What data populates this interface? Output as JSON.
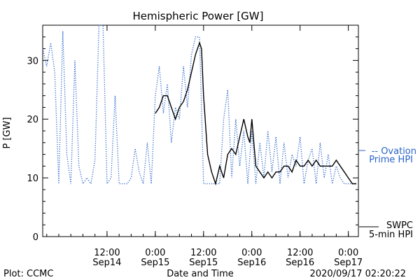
{
  "chart_data": {
    "type": "line",
    "title": "Hemispheric Power [GW]",
    "ylabel": "P [GW]",
    "xlabel": "Date and Time",
    "ylim": [
      0,
      36
    ],
    "yticks": [
      0,
      10,
      20,
      30
    ],
    "xlim": [
      "2020-09-13T20:00",
      "2020-09-17T02:30"
    ],
    "xticks": [
      {
        "time": "2020-09-14T12:00",
        "top": "12:00",
        "bottom": "Sep14"
      },
      {
        "time": "2020-09-15T00:00",
        "top": "0:00",
        "bottom": "Sep15"
      },
      {
        "time": "2020-09-15T12:00",
        "top": "12:00",
        "bottom": "Sep15"
      },
      {
        "time": "2020-09-16T00:00",
        "top": "0:00",
        "bottom": "Sep16"
      },
      {
        "time": "2020-09-16T12:00",
        "top": "12:00",
        "bottom": "Sep16"
      },
      {
        "time": "2020-09-17T00:00",
        "top": "0:00",
        "bottom": "Sep17"
      }
    ],
    "series": [
      {
        "name": "Ovation Prime HPI",
        "legend_lines": [
          "-- Ovation",
          "Prime HPI"
        ],
        "color": "#2a64c8",
        "style": "dotted",
        "points": [
          [
            "2020-09-13T20:00",
            32
          ],
          [
            "2020-09-13T21:00",
            29
          ],
          [
            "2020-09-13T22:00",
            33
          ],
          [
            "2020-09-13T23:00",
            28
          ],
          [
            "2020-09-14T00:00",
            9
          ],
          [
            "2020-09-14T01:00",
            35
          ],
          [
            "2020-09-14T02:00",
            14
          ],
          [
            "2020-09-14T03:00",
            9
          ],
          [
            "2020-09-14T04:00",
            30
          ],
          [
            "2020-09-14T05:00",
            12
          ],
          [
            "2020-09-14T06:00",
            9
          ],
          [
            "2020-09-14T07:00",
            10
          ],
          [
            "2020-09-14T08:00",
            9
          ],
          [
            "2020-09-14T09:00",
            13
          ],
          [
            "2020-09-14T10:00",
            36
          ],
          [
            "2020-09-14T11:00",
            36
          ],
          [
            "2020-09-14T12:00",
            9
          ],
          [
            "2020-09-14T13:00",
            10
          ],
          [
            "2020-09-14T14:00",
            24
          ],
          [
            "2020-09-14T15:00",
            9
          ],
          [
            "2020-09-14T16:00",
            9
          ],
          [
            "2020-09-14T17:00",
            9
          ],
          [
            "2020-09-14T18:00",
            10
          ],
          [
            "2020-09-14T19:00",
            15
          ],
          [
            "2020-09-14T20:00",
            11
          ],
          [
            "2020-09-14T21:00",
            9
          ],
          [
            "2020-09-14T22:00",
            16
          ],
          [
            "2020-09-14T23:00",
            9
          ],
          [
            "2020-09-15T00:00",
            24
          ],
          [
            "2020-09-15T01:00",
            29
          ],
          [
            "2020-09-15T02:00",
            21
          ],
          [
            "2020-09-15T03:00",
            26
          ],
          [
            "2020-09-15T04:00",
            16
          ],
          [
            "2020-09-15T05:00",
            22
          ],
          [
            "2020-09-15T06:00",
            20
          ],
          [
            "2020-09-15T07:00",
            29
          ],
          [
            "2020-09-15T08:00",
            22
          ],
          [
            "2020-09-15T09:00",
            31
          ],
          [
            "2020-09-15T10:00",
            34
          ],
          [
            "2020-09-15T11:00",
            34
          ],
          [
            "2020-09-15T12:00",
            9
          ],
          [
            "2020-09-15T13:00",
            9
          ],
          [
            "2020-09-15T14:00",
            9
          ],
          [
            "2020-09-15T15:00",
            9
          ],
          [
            "2020-09-15T16:00",
            9
          ],
          [
            "2020-09-15T17:00",
            20
          ],
          [
            "2020-09-15T18:00",
            25
          ],
          [
            "2020-09-15T19:00",
            10
          ],
          [
            "2020-09-15T20:00",
            20
          ],
          [
            "2020-09-15T21:00",
            12
          ],
          [
            "2020-09-15T22:00",
            18
          ],
          [
            "2020-09-15T23:00",
            9
          ],
          [
            "2020-09-16T00:00",
            18
          ],
          [
            "2020-09-16T01:00",
            9
          ],
          [
            "2020-09-16T02:00",
            16
          ],
          [
            "2020-09-16T03:00",
            10
          ],
          [
            "2020-09-16T04:00",
            18
          ],
          [
            "2020-09-16T05:00",
            11
          ],
          [
            "2020-09-16T06:00",
            17
          ],
          [
            "2020-09-16T07:00",
            9
          ],
          [
            "2020-09-16T08:00",
            16
          ],
          [
            "2020-09-16T09:00",
            10
          ],
          [
            "2020-09-16T10:00",
            14
          ],
          [
            "2020-09-16T11:00",
            12
          ],
          [
            "2020-09-16T12:00",
            17
          ],
          [
            "2020-09-16T13:00",
            9
          ],
          [
            "2020-09-16T14:00",
            13
          ],
          [
            "2020-09-16T15:00",
            15
          ],
          [
            "2020-09-16T16:00",
            9
          ],
          [
            "2020-09-16T17:00",
            16
          ],
          [
            "2020-09-16T18:00",
            10
          ],
          [
            "2020-09-16T19:00",
            14
          ],
          [
            "2020-09-16T20:00",
            9
          ],
          [
            "2020-09-16T21:00",
            12
          ],
          [
            "2020-09-16T22:00",
            10
          ],
          [
            "2020-09-16T23:00",
            9
          ],
          [
            "2020-09-17T00:00",
            9
          ],
          [
            "2020-09-17T01:00",
            9
          ],
          [
            "2020-09-17T02:00",
            9
          ]
        ]
      },
      {
        "name": "SWPC 5-min HPI",
        "legend_lines": [
          "SWPC",
          "5-min HPI"
        ],
        "color": "#000000",
        "style": "solid",
        "points": [
          [
            "2020-09-15T00:00",
            21
          ],
          [
            "2020-09-15T01:00",
            22
          ],
          [
            "2020-09-15T02:00",
            24
          ],
          [
            "2020-09-15T03:00",
            24
          ],
          [
            "2020-09-15T04:00",
            22
          ],
          [
            "2020-09-15T05:00",
            20
          ],
          [
            "2020-09-15T06:00",
            22
          ],
          [
            "2020-09-15T07:00",
            23
          ],
          [
            "2020-09-15T08:00",
            25
          ],
          [
            "2020-09-15T09:00",
            28
          ],
          [
            "2020-09-15T10:00",
            31
          ],
          [
            "2020-09-15T11:00",
            33
          ],
          [
            "2020-09-15T11:30",
            32
          ],
          [
            "2020-09-15T12:00",
            24
          ],
          [
            "2020-09-15T13:00",
            14
          ],
          [
            "2020-09-15T14:00",
            11
          ],
          [
            "2020-09-15T15:00",
            9
          ],
          [
            "2020-09-15T16:00",
            12
          ],
          [
            "2020-09-15T17:00",
            10
          ],
          [
            "2020-09-15T18:00",
            14
          ],
          [
            "2020-09-15T19:00",
            15
          ],
          [
            "2020-09-15T20:00",
            14
          ],
          [
            "2020-09-15T21:00",
            17
          ],
          [
            "2020-09-15T22:00",
            20
          ],
          [
            "2020-09-15T23:00",
            17
          ],
          [
            "2020-09-15T23:30",
            16
          ],
          [
            "2020-09-16T00:00",
            20
          ],
          [
            "2020-09-16T01:00",
            12
          ],
          [
            "2020-09-16T02:00",
            11
          ],
          [
            "2020-09-16T03:00",
            10
          ],
          [
            "2020-09-16T04:00",
            11
          ],
          [
            "2020-09-16T05:00",
            10
          ],
          [
            "2020-09-16T06:00",
            11
          ],
          [
            "2020-09-16T07:00",
            11
          ],
          [
            "2020-09-16T08:00",
            12
          ],
          [
            "2020-09-16T09:00",
            12
          ],
          [
            "2020-09-16T10:00",
            11
          ],
          [
            "2020-09-16T11:00",
            13
          ],
          [
            "2020-09-16T12:00",
            12
          ],
          [
            "2020-09-16T13:00",
            12
          ],
          [
            "2020-09-16T14:00",
            13
          ],
          [
            "2020-09-16T15:00",
            12
          ],
          [
            "2020-09-16T16:00",
            13
          ],
          [
            "2020-09-16T17:00",
            12
          ],
          [
            "2020-09-16T18:00",
            12
          ],
          [
            "2020-09-16T19:00",
            12
          ],
          [
            "2020-09-16T20:00",
            12
          ],
          [
            "2020-09-16T21:00",
            13
          ],
          [
            "2020-09-16T22:00",
            12
          ],
          [
            "2020-09-16T23:00",
            11
          ],
          [
            "2020-09-17T00:00",
            10
          ],
          [
            "2020-09-17T01:00",
            9
          ],
          [
            "2020-09-17T02:00",
            9
          ]
        ]
      }
    ],
    "grid": false
  },
  "footer": {
    "plot_credit": "Plot: CCMC",
    "timestamp": "2020/09/17 02:20:22"
  }
}
